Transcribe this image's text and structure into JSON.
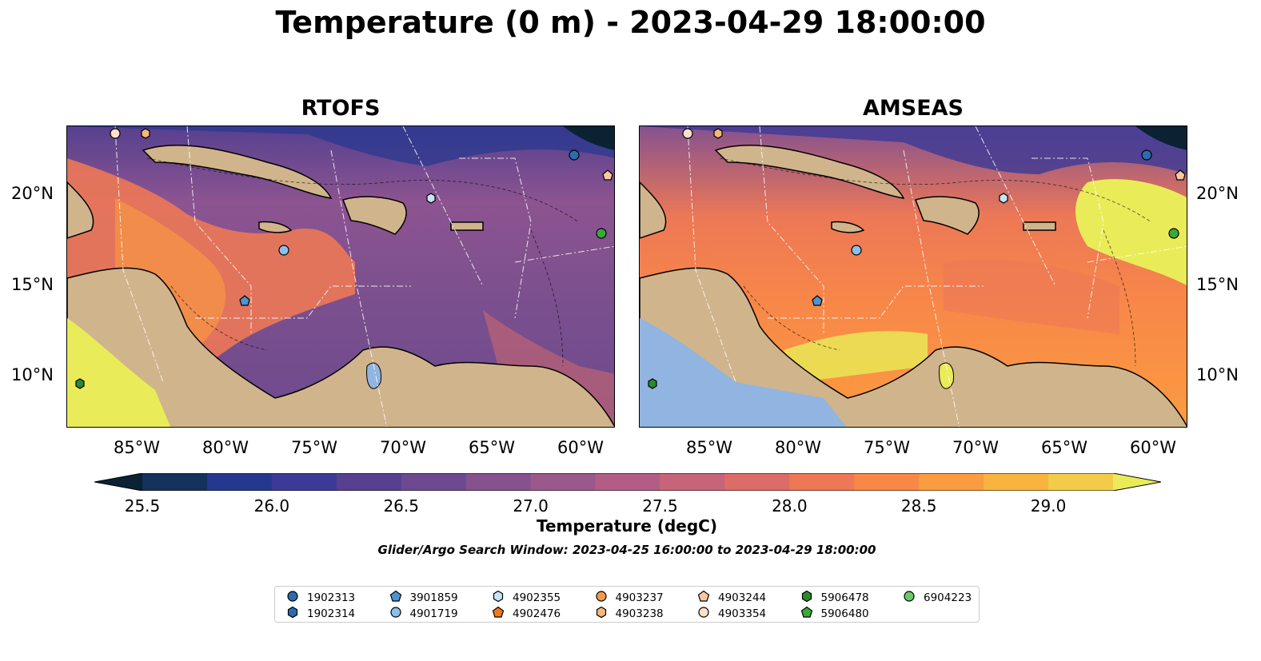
{
  "title": "Temperature (0 m) - 2023-04-29 18:00:00",
  "panels": [
    {
      "name": "RTOFS"
    },
    {
      "name": "AMSEAS"
    }
  ],
  "latitude_labels": [
    "20°N",
    "15°N",
    "10°N"
  ],
  "longitude_labels": [
    "85°W",
    "80°W",
    "75°W",
    "70°W",
    "65°W",
    "60°W"
  ],
  "colorbar": {
    "label": "Temperature (degC)",
    "ticks": [
      "25.5",
      "26.0",
      "26.5",
      "27.0",
      "27.5",
      "28.0",
      "28.5",
      "29.0"
    ],
    "range": [
      25.5,
      29.25
    ],
    "extend": "both",
    "colors": [
      "#0a2232",
      "#14325a",
      "#25388e",
      "#3c3a96",
      "#56408f",
      "#6d4a8f",
      "#85528e",
      "#9b588a",
      "#b25e84",
      "#c8647a",
      "#dc6c68",
      "#ed7856",
      "#f88848",
      "#fb9c40",
      "#f9b440",
      "#f2cc48",
      "#e9ec58"
    ]
  },
  "search_window": "Glider/Argo Search Window: 2023-04-25 16:00:00 to 2023-04-29 18:00:00",
  "legend": [
    {
      "id": "1902313",
      "marker": "circle",
      "color": "#2b6bb0"
    },
    {
      "id": "1902314",
      "marker": "hexagon",
      "color": "#2b6bb0"
    },
    {
      "id": "3901859",
      "marker": "pentagon",
      "color": "#4c94d0"
    },
    {
      "id": "4901719",
      "marker": "circle",
      "color": "#8cc0e8"
    },
    {
      "id": "4902355",
      "marker": "hexagon",
      "color": "#c8e4f8"
    },
    {
      "id": "4902476",
      "marker": "pentagon",
      "color": "#f07818"
    },
    {
      "id": "4903237",
      "marker": "circle",
      "color": "#f39a4a"
    },
    {
      "id": "4903238",
      "marker": "hexagon",
      "color": "#f8b67a"
    },
    {
      "id": "4903244",
      "marker": "pentagon",
      "color": "#f9c7a0"
    },
    {
      "id": "4903354",
      "marker": "circle",
      "color": "#fde0c8"
    },
    {
      "id": "5906478",
      "marker": "hexagon",
      "color": "#2c8a2c"
    },
    {
      "id": "5906480",
      "marker": "pentagon",
      "color": "#3aa83a"
    },
    {
      "id": "6904223",
      "marker": "circle",
      "color": "#6cc86c"
    }
  ],
  "land_color": "#d0b48c",
  "background_water_color": "#92b4e0"
}
